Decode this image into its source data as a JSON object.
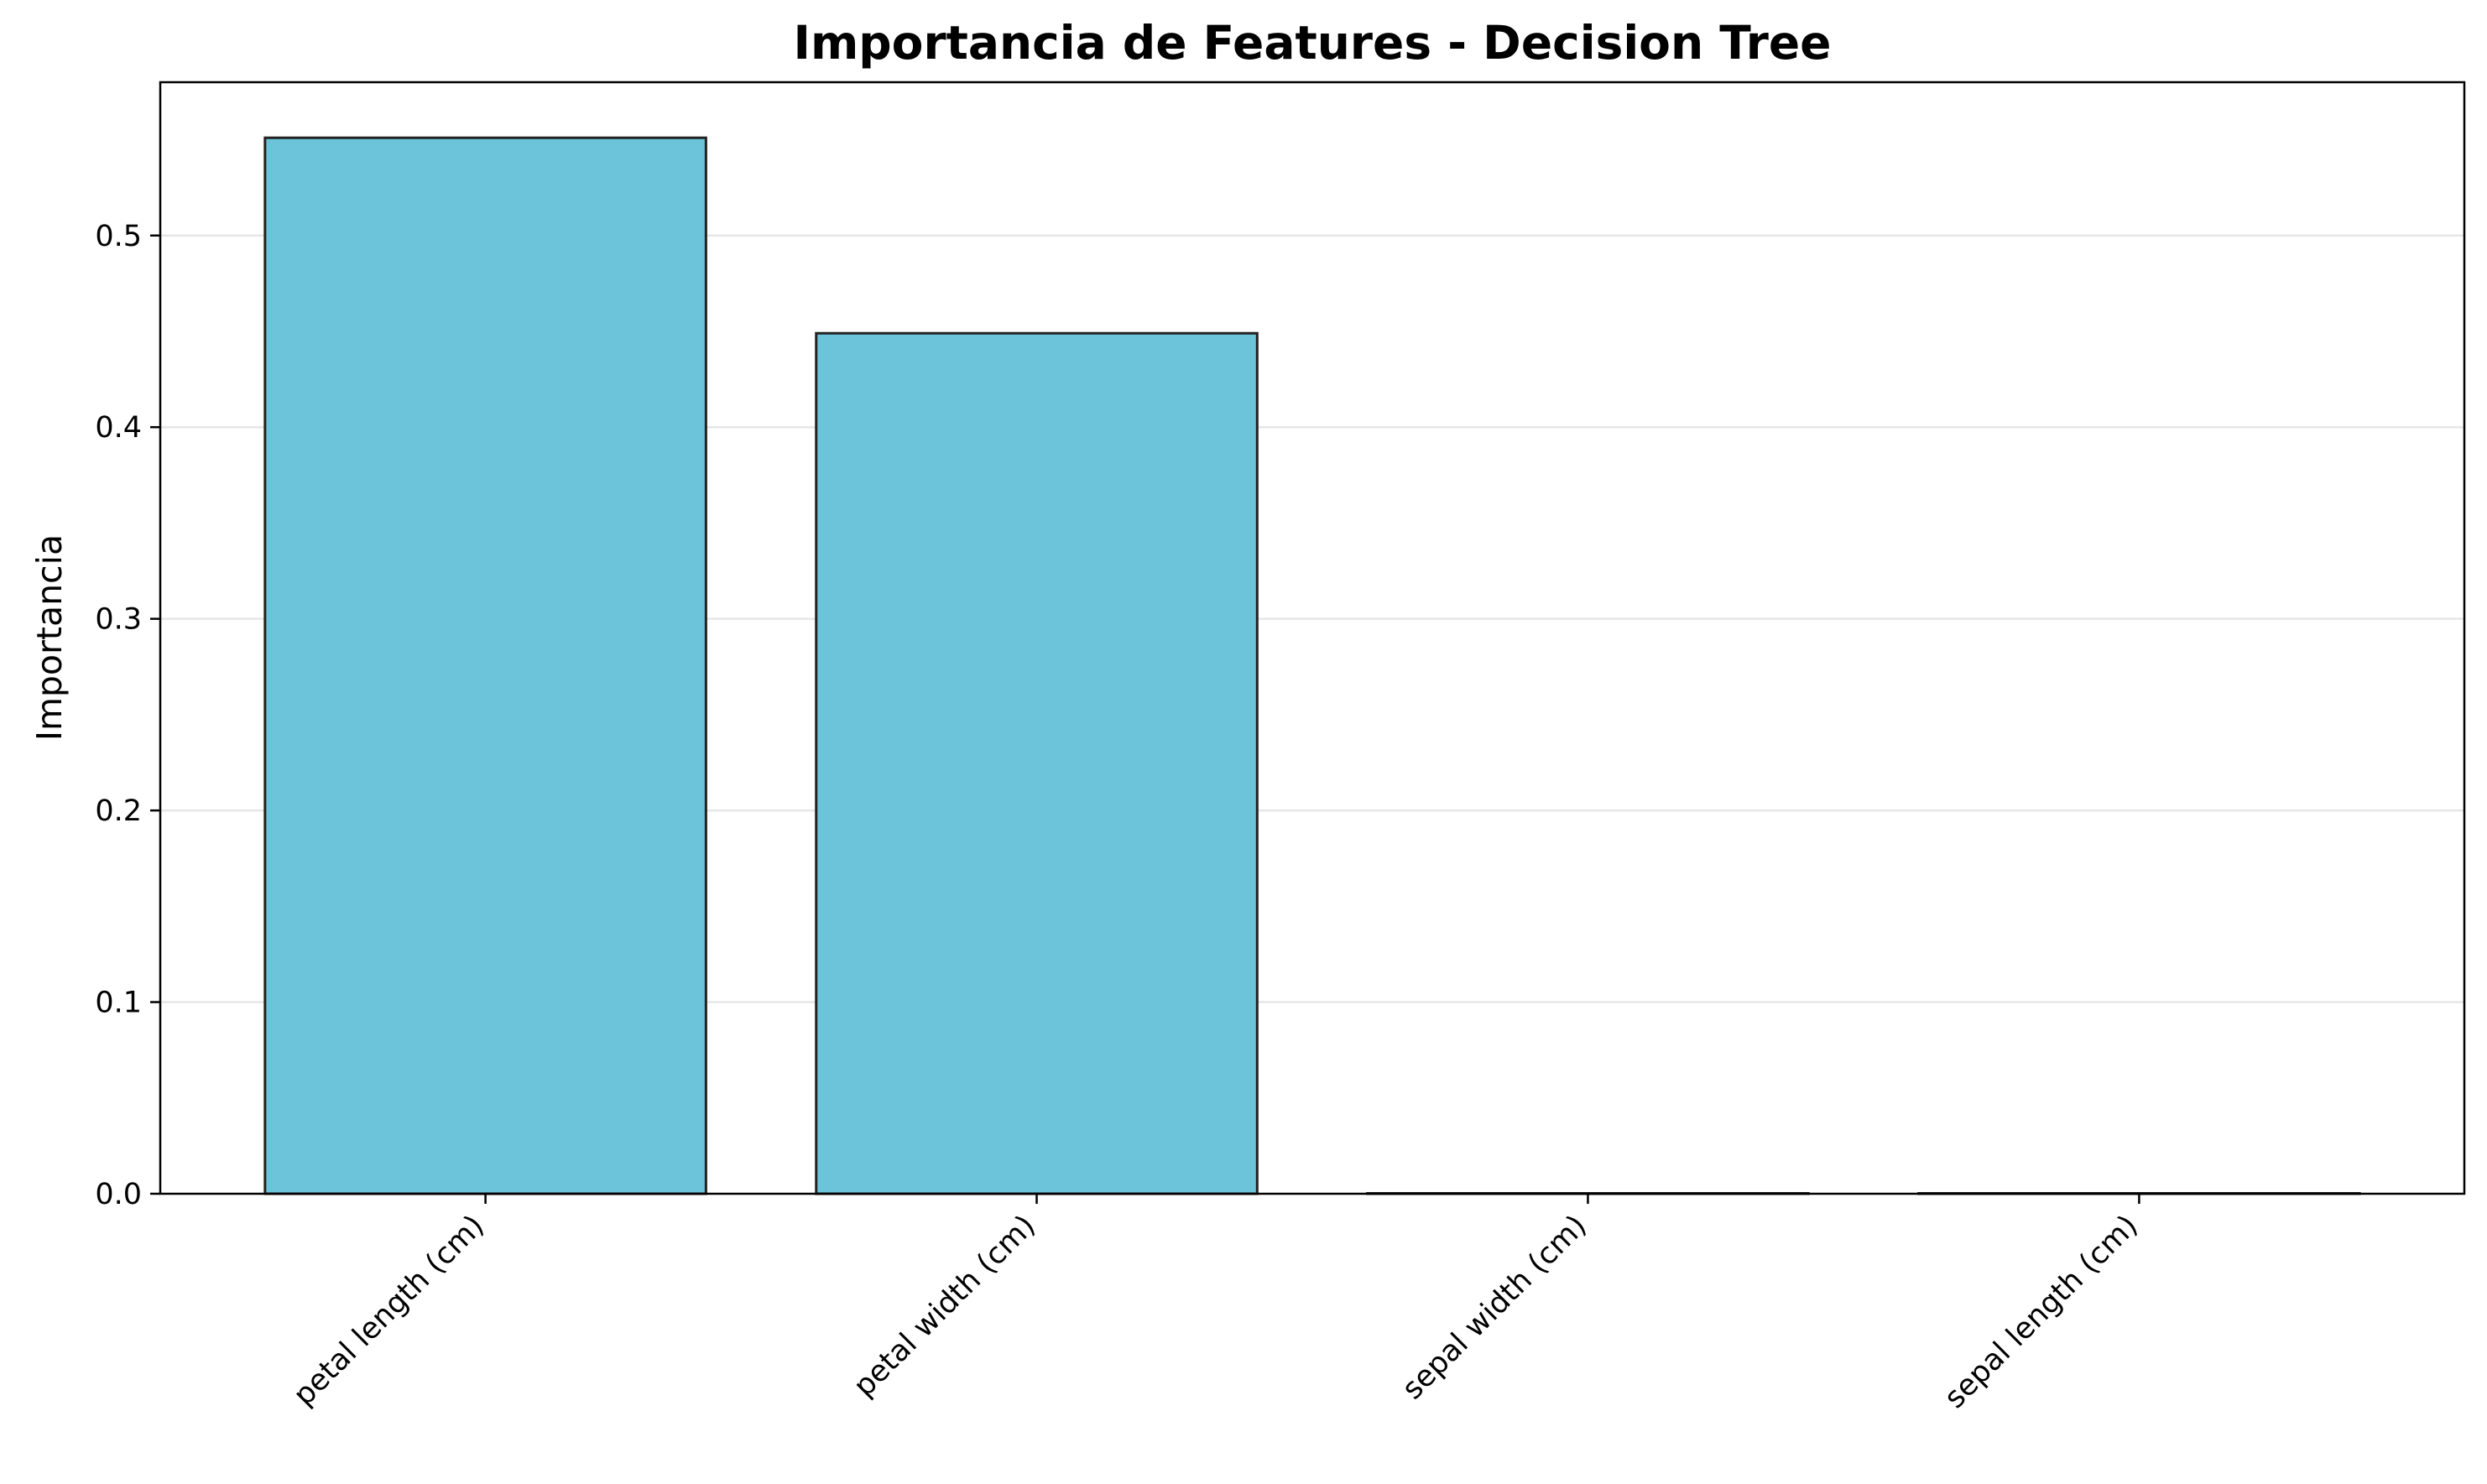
{
  "chart_data": {
    "type": "bar",
    "title": "Importancia de Features - Decision Tree",
    "xlabel": "",
    "ylabel": "Importancia",
    "categories": [
      "petal length (cm)",
      "petal width (cm)",
      "sepal width (cm)",
      "sepal length (cm)"
    ],
    "values": [
      0.551,
      0.449,
      0.0,
      0.0
    ],
    "ylim": [
      0.0,
      0.58
    ],
    "yticks": [
      0.0,
      0.1,
      0.2,
      0.3,
      0.4,
      0.5
    ],
    "ytick_labels": [
      "0.0",
      "0.1",
      "0.2",
      "0.3",
      "0.4",
      "0.5"
    ],
    "grid": "y-axis, light",
    "legend": "none",
    "bar_color": "#6bc4d9",
    "bar_edge_color": "#222222",
    "grid_color": "#e6e6e6"
  }
}
